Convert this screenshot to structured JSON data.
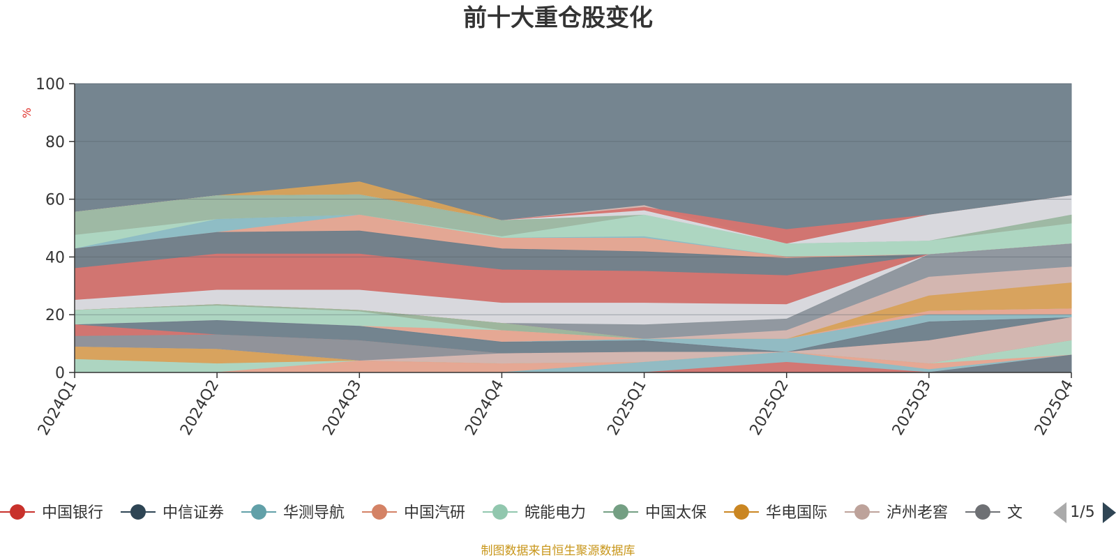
{
  "chart_data": {
    "type": "area",
    "title": "前十大重仓股变化",
    "ylabel": "%",
    "ylim": [
      0,
      100
    ],
    "yticks": [
      "0",
      "20",
      "40",
      "60",
      "80",
      "100"
    ],
    "categories": [
      "2024Q1",
      "2024Q2",
      "2024Q3",
      "2024Q4",
      "2025Q1",
      "2025Q2",
      "2025Q3",
      "2025Q4"
    ],
    "grid": true,
    "legend_position": "bottom",
    "layers": [
      {
        "color": "#6e7e8a",
        "values": [
          100,
          100,
          100,
          100,
          100,
          100,
          100,
          100
        ]
      },
      {
        "color": "#d8a25a",
        "values": [
          55.5,
          61.2,
          66,
          52.6,
          52.6,
          44.5,
          54.5,
          61.2
        ]
      },
      {
        "color": "#d7b7b1",
        "values": [
          55.5,
          61.2,
          61.5,
          52.6,
          57.8,
          44.5,
          54.5,
          61.2
        ]
      },
      {
        "color": "#d67470",
        "values": [
          55.5,
          61.2,
          61.5,
          52.6,
          57.2,
          49.5,
          54.5,
          61.2
        ]
      },
      {
        "color": "#d8dde3",
        "values": [
          55.5,
          61.2,
          61.5,
          52.6,
          56,
          44.5,
          54.5,
          61.2
        ]
      },
      {
        "color": "#9bb7a0",
        "values": [
          55.5,
          61.2,
          61.5,
          52.6,
          54.5,
          44.5,
          45.5,
          54.5
        ]
      },
      {
        "color": "#aed7c3",
        "values": [
          47.5,
          53,
          54.5,
          47,
          54.5,
          44.5,
          45.5,
          51.5
        ]
      },
      {
        "color": "#8dbcc5",
        "values": [
          42.8,
          53,
          54.5,
          46.5,
          47,
          40,
          40.8,
          44.5
        ]
      },
      {
        "color": "#e8a591",
        "values": [
          42.8,
          48.5,
          54.5,
          46.5,
          46.5,
          40,
          40.8,
          44.5
        ]
      },
      {
        "color": "#6e7e8a",
        "values": [
          42.8,
          48.5,
          49,
          42.8,
          41.8,
          39.5,
          40.8,
          44.5
        ]
      },
      {
        "color": "#d67470",
        "values": [
          36,
          41,
          41,
          35.5,
          35,
          33.5,
          40.8,
          44.5
        ]
      },
      {
        "color": "#d8dde3",
        "values": [
          25,
          28.5,
          28.5,
          24,
          24,
          23.5,
          40.8,
          44.5
        ]
      },
      {
        "color": "#8d959c",
        "values": [
          21.5,
          23.5,
          21.5,
          17,
          16.5,
          18.5,
          40.8,
          44.5
        ]
      },
      {
        "color": "#d7b7b1",
        "values": [
          21.5,
          23.5,
          21.5,
          17,
          11.5,
          14.5,
          33,
          36.5
        ]
      },
      {
        "color": "#d8a25a",
        "values": [
          21.5,
          23.5,
          21.5,
          17,
          11.5,
          11.5,
          26.5,
          31
        ]
      },
      {
        "color": "#9bb7a0",
        "values": [
          21.5,
          23.5,
          21.5,
          17,
          11.5,
          11.5,
          21.2,
          22
        ]
      },
      {
        "color": "#aed7c3",
        "values": [
          21.5,
          23,
          21,
          14.5,
          11.5,
          11.5,
          21.2,
          22
        ]
      },
      {
        "color": "#e8a591",
        "values": [
          16.5,
          18,
          16,
          14.5,
          11.5,
          11.5,
          21.2,
          22
        ]
      },
      {
        "color": "#8dbcc5",
        "values": [
          16.5,
          18,
          16,
          10.5,
          11.5,
          11.5,
          20,
          20
        ]
      },
      {
        "color": "#d8dde3",
        "values": [
          16.5,
          18,
          16,
          10.5,
          11,
          7,
          17.5,
          19
        ]
      },
      {
        "color": "#6e7e8a",
        "values": [
          16.5,
          18,
          16,
          10.5,
          11,
          7,
          17.5,
          19
        ]
      },
      {
        "color": "#d67470",
        "values": [
          16.5,
          13,
          11,
          6.5,
          7,
          7,
          11,
          19
        ]
      },
      {
        "color": "#8d959c",
        "values": [
          12.5,
          13,
          11,
          6.5,
          7,
          7,
          11,
          19
        ]
      },
      {
        "color": "#d7b7b1",
        "values": [
          8.8,
          8,
          4,
          6.5,
          7,
          7,
          11,
          19
        ]
      },
      {
        "color": "#d8a25a",
        "values": [
          8.8,
          8,
          4,
          3,
          3.5,
          7,
          3,
          11
        ]
      },
      {
        "color": "#9bb7a0",
        "values": [
          4.5,
          3,
          4,
          3,
          3.5,
          7,
          3,
          11
        ]
      },
      {
        "color": "#aed7c3",
        "values": [
          4.5,
          3,
          4,
          3,
          3.5,
          7,
          3,
          11
        ]
      },
      {
        "color": "#e8a591",
        "values": [
          0,
          0,
          4,
          3,
          3.5,
          7,
          3,
          6
        ]
      },
      {
        "color": "#8dbcc5",
        "values": [
          0,
          0,
          0,
          0,
          3.5,
          7,
          1,
          6
        ]
      },
      {
        "color": "#d67470",
        "values": [
          0,
          0,
          0,
          0,
          0,
          3.5,
          0,
          6
        ]
      },
      {
        "color": "#6e7e8a",
        "values": [
          0,
          0,
          0,
          0,
          0,
          0,
          0,
          6
        ]
      }
    ],
    "legend": {
      "items": [
        {
          "name": "中国银行",
          "color": "#c8312b"
        },
        {
          "name": "中信证券",
          "color": "#2e4554"
        },
        {
          "name": "华测导航",
          "color": "#61a0a8"
        },
        {
          "name": "中国汽研",
          "color": "#d48265"
        },
        {
          "name": "皖能电力",
          "color": "#91c7ae"
        },
        {
          "name": "中国太保",
          "color": "#749f83"
        },
        {
          "name": "华电国际",
          "color": "#ca8622"
        },
        {
          "name": "泸州老窖",
          "color": "#bda29a"
        },
        {
          "name": "文",
          "color": "#6e7074"
        }
      ],
      "page": "1/5"
    },
    "source": "制图数据来自恒生聚源数据库"
  }
}
